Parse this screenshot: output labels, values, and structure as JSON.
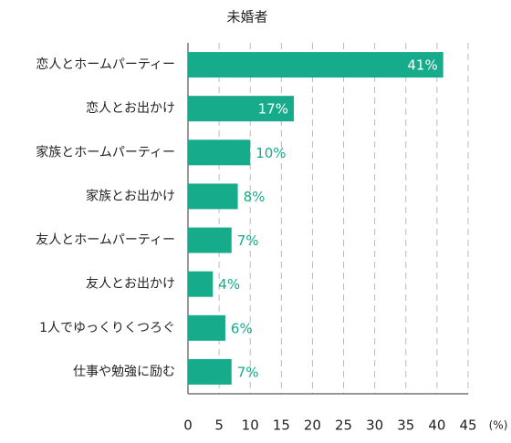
{
  "chart_data": {
    "type": "barh",
    "title": "未婚者",
    "categories": [
      "恋人とホームパーティー",
      "恋人とお出かけ",
      "家族とホームパーティー",
      "家族とお出かけ",
      "友人とホームパーティー",
      "友人とお出かけ",
      "1人でゆっくりくつろぐ",
      "仕事や勉強に励む"
    ],
    "values": [
      41,
      17,
      10,
      8,
      7,
      4,
      6,
      7
    ],
    "value_labels": [
      "41%",
      "17%",
      "10%",
      "8%",
      "7%",
      "4%",
      "6%",
      "7%"
    ],
    "color": "#16ab8a",
    "xlabel": "(%)",
    "xlim": [
      0,
      45
    ],
    "xticks": [
      0,
      5,
      10,
      15,
      20,
      25,
      30,
      35,
      40,
      45
    ],
    "grid": true
  }
}
